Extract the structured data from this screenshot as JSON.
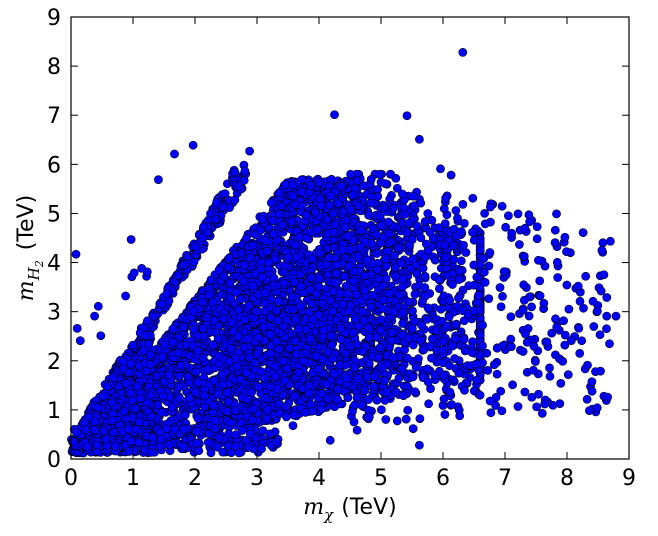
{
  "chart_data": {
    "type": "scatter",
    "title": "",
    "xlabel": {
      "symbol": "m",
      "subscript": "χ",
      "unit": "(TeV)"
    },
    "ylabel": {
      "symbol": "m",
      "subscript": "H",
      "subsubscript": "2",
      "unit": "(TeV)"
    },
    "xlim": [
      0,
      9
    ],
    "ylim": [
      0,
      9
    ],
    "xticks": [
      0,
      1,
      2,
      3,
      4,
      5,
      6,
      7,
      8,
      9
    ],
    "yticks": [
      0,
      1,
      2,
      3,
      4,
      5,
      6,
      7,
      8,
      9
    ],
    "grid": false,
    "legend": "none",
    "marker_color": "#0000ff",
    "marker_edge": "#000000",
    "series": [
      {
        "points": [
          [
            6.32,
            8.28
          ],
          [
            4.25,
            7.01
          ],
          [
            5.42,
            6.99
          ],
          [
            5.62,
            6.51
          ],
          [
            1.97,
            6.39
          ],
          [
            2.88,
            6.27
          ],
          [
            1.41,
            5.69
          ],
          [
            4.0,
            5.63
          ],
          [
            5.96,
            5.91
          ],
          [
            6.13,
            5.78
          ],
          [
            6.48,
            5.31
          ],
          [
            7.21,
            4.99
          ],
          [
            7.52,
            4.73
          ],
          [
            7.83,
            4.99
          ],
          [
            8.26,
            4.61
          ],
          [
            8.55,
            3.42
          ],
          [
            8.64,
            2.91
          ],
          [
            8.79,
            2.91
          ],
          [
            8.49,
            3.01
          ],
          [
            8.18,
            3.52
          ],
          [
            8.33,
            1.91
          ],
          [
            8.46,
            1.78
          ],
          [
            8.54,
            1.79
          ],
          [
            8.07,
            2.41
          ],
          [
            7.93,
            1.99
          ],
          [
            7.54,
            1.32
          ],
          [
            7.64,
            1.12
          ],
          [
            7.51,
            1.06
          ],
          [
            7.21,
            1.07
          ],
          [
            6.93,
            1.38
          ],
          [
            6.76,
            1.18
          ],
          [
            6.27,
            0.88
          ],
          [
            6.14,
            1.11
          ],
          [
            5.62,
            0.28
          ],
          [
            5.52,
            0.62
          ],
          [
            4.18,
            0.38
          ],
          [
            3.58,
            0.68
          ],
          [
            2.89,
            0.51
          ],
          [
            1.32,
            0.44
          ],
          [
            0.08,
            4.17
          ],
          [
            0.1,
            2.66
          ],
          [
            0.15,
            2.41
          ],
          [
            0.38,
            2.91
          ],
          [
            0.44,
            3.11
          ],
          [
            0.48,
            2.51
          ],
          [
            0.88,
            3.32
          ],
          [
            0.98,
            3.71
          ],
          [
            1.02,
            3.79
          ],
          [
            0.97,
            4.47
          ],
          [
            1.22,
            3.72
          ],
          [
            1.23,
            3.81
          ],
          [
            1.14,
            3.88
          ],
          [
            0.04,
            0.35
          ],
          [
            0.72,
            0.26
          ],
          [
            1.67,
            6.21
          ]
        ]
      }
    ],
    "distribution": {
      "n_points": 5200,
      "regions": [
        {
          "mx_range": [
            0.05,
            6.3
          ],
          "slope_min": 0.24,
          "slope_max": 1.62,
          "center_mx": 3.6,
          "spread_mx": 1.45,
          "density": "bulk"
        },
        {
          "mx_range": [
            2.8,
            8.7
          ],
          "my_range": [
            0.8,
            5.7
          ],
          "density": "sparse-right-tail"
        },
        {
          "line_slope": 2.24,
          "mx_range": [
            0.45,
            2.82
          ],
          "density": "upper-band"
        },
        {
          "line_slope": 1.62,
          "mx_range": [
            0.6,
            2.65
          ],
          "density": "lower-edge"
        },
        {
          "mx_range": [
            0.0,
            1.3
          ],
          "my_range": [
            0.1,
            3.0
          ],
          "density": "low-mass-scatter"
        }
      ]
    }
  }
}
